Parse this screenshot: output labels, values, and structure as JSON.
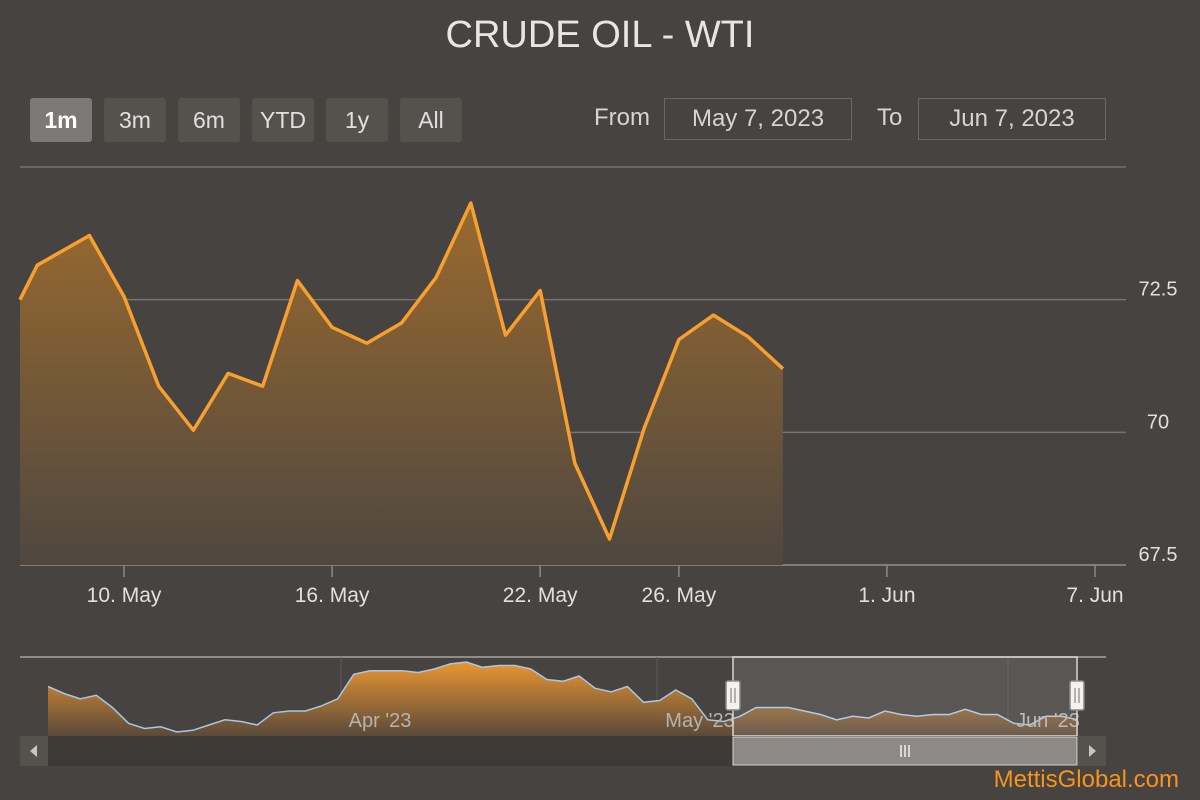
{
  "title": "CRUDE OIL - WTI",
  "range_selector": {
    "buttons": [
      {
        "label": "1m",
        "active": true
      },
      {
        "label": "3m",
        "active": false
      },
      {
        "label": "6m",
        "active": false
      },
      {
        "label": "YTD",
        "active": false
      },
      {
        "label": "1y",
        "active": false
      },
      {
        "label": "All",
        "active": false
      }
    ],
    "from_label": "From",
    "from_value": "May 7, 2023",
    "to_label": "To",
    "to_value": "Jun 7, 2023"
  },
  "watermark": "MettisGlobal.com",
  "colors": {
    "background": "#474340",
    "line": "#f7a030",
    "gridline": "#76726e",
    "text": "#e2e0dd",
    "navigator_line": "#a9c6e8"
  },
  "chart_data": {
    "type": "area",
    "title": "CRUDE OIL - WTI",
    "xlabel": "",
    "ylabel": "",
    "x_range": [
      "2023-05-07",
      "2023-06-07"
    ],
    "ylim": [
      67.5,
      75
    ],
    "y_axis_side": "right",
    "yticks": [
      67.5,
      70,
      72.5
    ],
    "xticks": [
      {
        "date": "2023-05-10",
        "label": "10. May"
      },
      {
        "date": "2023-05-16",
        "label": "16. May"
      },
      {
        "date": "2023-05-22",
        "label": "22. May"
      },
      {
        "date": "2023-05-26",
        "label": "26. May"
      },
      {
        "date": "2023-06-01",
        "label": "1. Jun"
      },
      {
        "date": "2023-06-07",
        "label": "7. Jun"
      }
    ],
    "grid": true,
    "legend": "none",
    "series": [
      {
        "points": [
          {
            "x": "2023-05-07",
            "y": 72.5
          },
          {
            "x": "2023-05-07T12:00",
            "y": 73.15
          },
          {
            "x": "2023-05-09",
            "y": 73.71
          },
          {
            "x": "2023-05-10",
            "y": 72.56
          },
          {
            "x": "2023-05-11",
            "y": 70.87
          },
          {
            "x": "2023-05-12",
            "y": 70.04
          },
          {
            "x": "2023-05-13",
            "y": 71.11
          },
          {
            "x": "2023-05-14",
            "y": 70.87
          },
          {
            "x": "2023-05-15",
            "y": 72.86
          },
          {
            "x": "2023-05-16",
            "y": 71.98
          },
          {
            "x": "2023-05-17",
            "y": 71.68
          },
          {
            "x": "2023-05-18",
            "y": 72.06
          },
          {
            "x": "2023-05-19",
            "y": 72.92
          },
          {
            "x": "2023-05-20",
            "y": 74.32
          },
          {
            "x": "2023-05-21",
            "y": 71.83
          },
          {
            "x": "2023-05-22",
            "y": 72.67
          },
          {
            "x": "2023-05-23",
            "y": 69.42
          },
          {
            "x": "2023-05-24",
            "y": 67.99
          },
          {
            "x": "2023-05-25",
            "y": 70.08
          },
          {
            "x": "2023-05-26",
            "y": 71.75
          },
          {
            "x": "2023-05-27",
            "y": 72.21
          },
          {
            "x": "2023-05-28",
            "y": 71.8
          },
          {
            "x": "2023-05-29",
            "y": 71.2
          }
        ]
      }
    ],
    "navigator": {
      "xticks": [
        "Apr '23",
        "May '23",
        "Jun '23"
      ],
      "values": [
        77.0,
        76.6,
        76.3,
        76.5,
        75.8,
        74.9,
        74.6,
        74.7,
        74.4,
        74.5,
        74.8,
        75.1,
        75.0,
        74.8,
        75.5,
        75.6,
        75.6,
        75.9,
        76.3,
        77.7,
        77.9,
        77.9,
        77.9,
        77.8,
        78.0,
        78.3,
        78.4,
        78.1,
        78.2,
        78.2,
        78.0,
        77.4,
        77.3,
        77.6,
        76.9,
        76.7,
        77.0,
        76.1,
        76.2,
        76.8,
        76.3,
        75.1,
        75.0,
        75.3,
        75.8,
        75.8,
        75.8,
        75.6,
        75.4,
        75.1,
        75.3,
        75.2,
        75.6,
        75.4,
        75.3,
        75.4,
        75.4,
        75.7,
        75.4,
        75.4,
        74.9,
        74.8,
        75.3,
        75.3,
        75.1
      ]
    }
  }
}
